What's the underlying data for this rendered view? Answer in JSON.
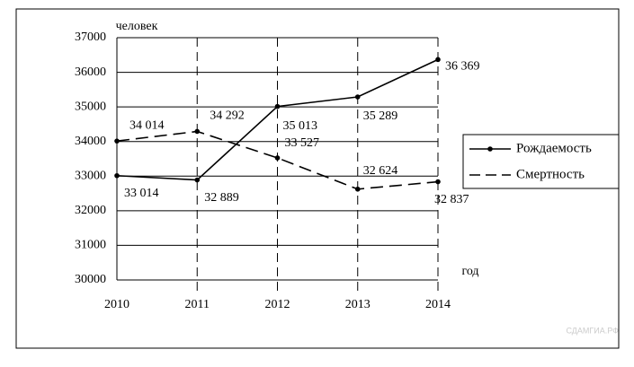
{
  "chart_data": {
    "type": "line",
    "y_label": "человек",
    "x_label": "год",
    "x": [
      2010,
      2011,
      2012,
      2013,
      2014
    ],
    "xlim": [
      2010,
      2014
    ],
    "ylim": [
      30000,
      37000
    ],
    "yticks": [
      30000,
      31000,
      32000,
      33000,
      34000,
      35000,
      36000,
      37000
    ],
    "grid": true,
    "legend": "right",
    "series": [
      {
        "name": "Рождаемость",
        "color": "#000000",
        "dash": "solid",
        "values": [
          33014,
          32889,
          35013,
          35289,
          36369
        ],
        "value_labels": [
          "33 014",
          "32 889",
          "35 013",
          "35 289",
          "36 369"
        ]
      },
      {
        "name": "Смертность",
        "color": "#000000",
        "dash": "dashed",
        "values": [
          34014,
          34292,
          33527,
          32624,
          32837
        ],
        "value_labels": [
          "34 014",
          "34 292",
          "33 527",
          "32 624",
          "32 837"
        ]
      }
    ],
    "watermark": "СДАМГИА.РФ"
  }
}
